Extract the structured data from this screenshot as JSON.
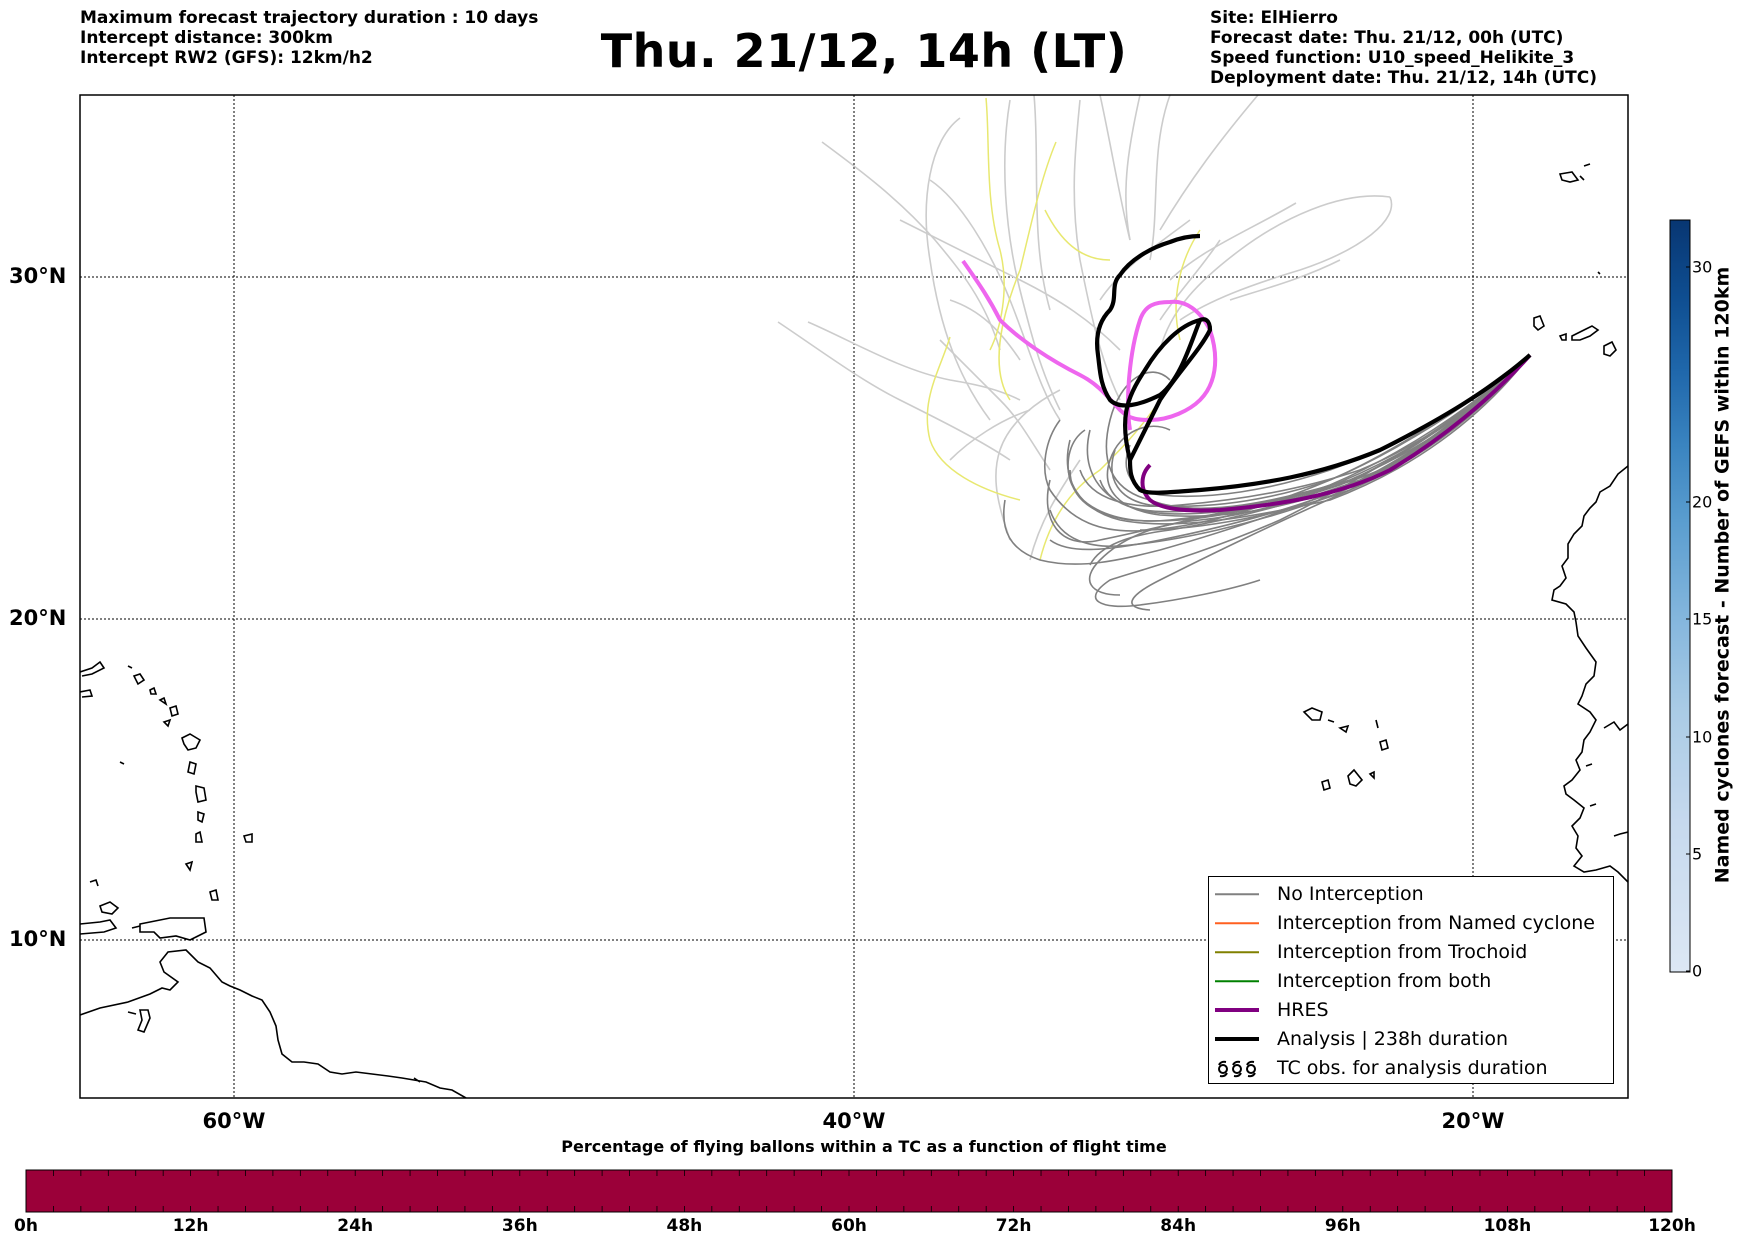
{
  "header": {
    "left_lines": [
      "Maximum forecast trajectory duration : 10 days",
      "Intercept distance: 300km",
      "Intercept RW2 (GFS):  12km/h2"
    ],
    "title": "Thu. 21/12, 14h (LT)",
    "right_lines": [
      "Site: ElHierro",
      "Forecast date: Thu. 21/12, 00h (UTC)",
      "Speed function: U10_speed_Helikite_3",
      "Deployment date: Thu. 21/12, 14h (UTC)"
    ]
  },
  "map": {
    "lat_labels": [
      "30°N",
      "20°N",
      "10°N"
    ],
    "lon_labels": [
      "60°W",
      "40°W",
      "20°W"
    ],
    "gridlines": true,
    "land_color": "#ffffff",
    "coast_color": "#000000"
  },
  "tracks": {
    "no_interception_color": "#808080",
    "hres_color": "#800080",
    "hres_member_color": "#ee66ee",
    "analysis_color": "#000000",
    "late_member_color": "#cccccc",
    "yellow_member_color": "#e8e870"
  },
  "legend": {
    "items": [
      {
        "label": "No Interception",
        "color": "#808080"
      },
      {
        "label": "Interception from Named cyclone",
        "color": "#ff6020"
      },
      {
        "label": "Interception from Trochoid",
        "color": "#808000"
      },
      {
        "label": "Interception from both",
        "color": "#008000"
      },
      {
        "label": "HRES",
        "color": "#800080"
      },
      {
        "label": "Analysis | 238h duration",
        "color": "#000000"
      },
      {
        "label": "TC obs. for analysis duration",
        "icon": "tc-symbol-icon"
      }
    ]
  },
  "colorbar": {
    "label": "Named cyclones forecast - Number of GEFS within 120km",
    "ticks": [
      "0",
      "5",
      "10",
      "15",
      "20",
      "30"
    ],
    "range": [
      0,
      32
    ],
    "colors": [
      "#dce7f4",
      "#c6d9ee",
      "#a9cbe5",
      "#84b6dd",
      "#5a9dcf",
      "#3a84c0",
      "#1f67ab",
      "#0e4d90",
      "#083672"
    ]
  },
  "percentage_bar": {
    "title": "Percentage of flying ballons within a TC as a function of flight time",
    "ticks": [
      "0h",
      "12h",
      "24h",
      "36h",
      "48h",
      "60h",
      "72h",
      "84h",
      "96h",
      "108h",
      "120h"
    ],
    "color": "#9b0039"
  }
}
